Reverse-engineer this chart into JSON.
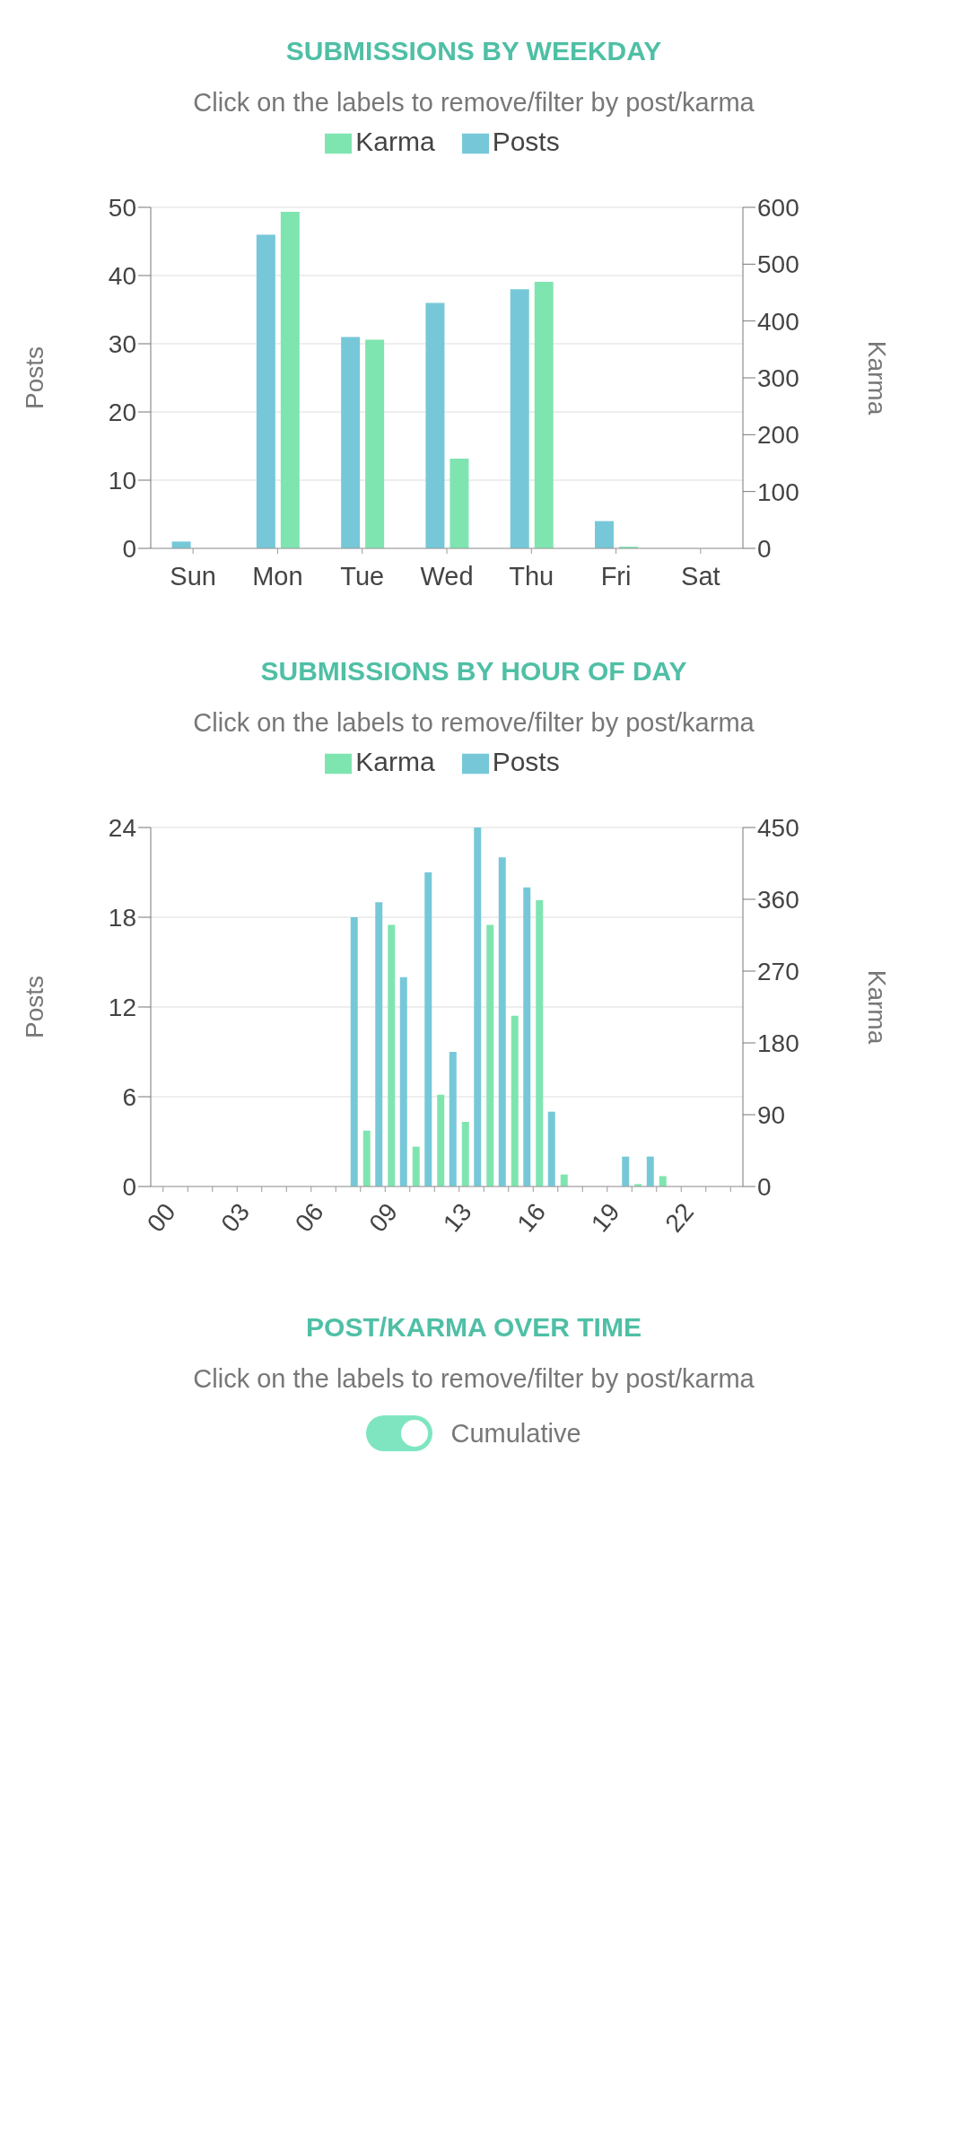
{
  "chart_data": [
    {
      "type": "bar",
      "title": "SUBMISSIONS BY WEEKDAY",
      "subtitle": "Click on the labels to remove/filter by post/karma",
      "ylabel": "Posts",
      "y2label": "Karma",
      "categories": [
        "Sun",
        "Mon",
        "Tue",
        "Wed",
        "Thu",
        "Fri",
        "Sat"
      ],
      "series": [
        {
          "name": "Posts",
          "color": "#76c8d8",
          "values": [
            1,
            46,
            31,
            36,
            38,
            4,
            0
          ]
        },
        {
          "name": "Karma",
          "color": "#7fe5b0",
          "axis": "y2",
          "values": [
            0,
            592,
            367,
            158,
            469,
            3,
            0
          ]
        }
      ],
      "ylim": [
        0,
        50
      ],
      "yticks": [
        0,
        10,
        20,
        30,
        40,
        50
      ],
      "y2lim": [
        0,
        600
      ],
      "y2ticks": [
        0,
        100,
        200,
        300,
        400,
        500,
        600
      ],
      "grid": "y",
      "legend": "top"
    },
    {
      "type": "bar",
      "title": "SUBMISSIONS BY HOUR OF DAY",
      "subtitle": "Click on the labels to remove/filter by post/karma",
      "ylabel": "Posts",
      "y2label": "Karma",
      "categories": [
        "00",
        null,
        null,
        "03",
        null,
        null,
        "06",
        null,
        null,
        "09",
        null,
        null,
        "13",
        null,
        null,
        "16",
        null,
        null,
        "19",
        null,
        null,
        "22",
        null,
        null
      ],
      "series": [
        {
          "name": "Posts",
          "color": "#76c8d8",
          "values": [
            0,
            0,
            0,
            0,
            0,
            0,
            0,
            0,
            18,
            19,
            14,
            21,
            9,
            24,
            22,
            20,
            5,
            0,
            0,
            2,
            2,
            0,
            0,
            0
          ]
        },
        {
          "name": "Karma",
          "color": "#7fe5b0",
          "axis": "y2",
          "values": [
            0,
            0,
            0,
            0,
            0,
            0,
            0,
            0,
            70,
            328,
            50,
            115,
            81,
            328,
            214,
            359,
            15,
            0,
            0,
            3,
            13,
            0,
            0,
            0
          ]
        }
      ],
      "ylim": [
        0,
        24
      ],
      "yticks": [
        0,
        6,
        12,
        18,
        24
      ],
      "y2lim": [
        0,
        450
      ],
      "y2ticks": [
        0,
        90,
        180,
        270,
        360,
        450
      ],
      "grid": "y",
      "legend": "top"
    },
    {
      "type": "other",
      "title": "POST/KARMA OVER TIME",
      "subtitle": "Click on the labels to remove/filter by post/karma",
      "annotations": [
        "Cumulative"
      ]
    }
  ]
}
